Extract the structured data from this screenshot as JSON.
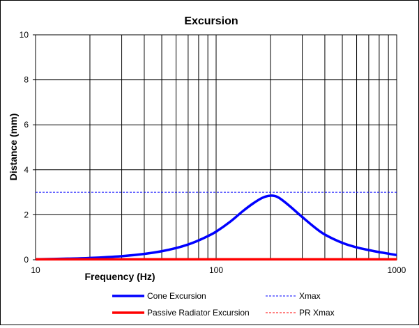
{
  "chart_data": {
    "type": "line",
    "title": "Excursion",
    "xlabel": "Frequency (Hz)",
    "ylabel": "Distance (mm)",
    "xscale": "log",
    "xlim": [
      10,
      1000
    ],
    "ylim": [
      0,
      10
    ],
    "x_tick_labels": [
      "10",
      "100",
      "1000"
    ],
    "y_tick_labels": [
      "0",
      "2",
      "4",
      "6",
      "8",
      "10"
    ],
    "grid": true,
    "legend_position": "bottom",
    "series": [
      {
        "name": "Cone Excursion",
        "color": "#0000ff",
        "style": "solid",
        "x": [
          10,
          15,
          20,
          30,
          40,
          50,
          60,
          70,
          80,
          90,
          100,
          120,
          140,
          160,
          180,
          200,
          220,
          250,
          300,
          350,
          400,
          500,
          600,
          700,
          800,
          900,
          1000
        ],
        "y": [
          0.02,
          0.05,
          0.08,
          0.16,
          0.26,
          0.38,
          0.52,
          0.68,
          0.86,
          1.05,
          1.25,
          1.7,
          2.15,
          2.5,
          2.75,
          2.85,
          2.78,
          2.45,
          1.9,
          1.45,
          1.12,
          0.75,
          0.55,
          0.43,
          0.34,
          0.27,
          0.21
        ]
      },
      {
        "name": "Passive Radiator Excursion",
        "color": "#ff0000",
        "style": "solid",
        "x": [
          10,
          1000
        ],
        "y": [
          0.02,
          0.02
        ]
      },
      {
        "name": "Xmax",
        "color": "#0000ff",
        "style": "dashed",
        "x": [
          10,
          1000
        ],
        "y": [
          3,
          3
        ]
      },
      {
        "name": "PR Xmax",
        "color": "#ff0000",
        "style": "dashed",
        "x": [
          10,
          1000
        ],
        "y": [
          0,
          0
        ]
      }
    ]
  }
}
